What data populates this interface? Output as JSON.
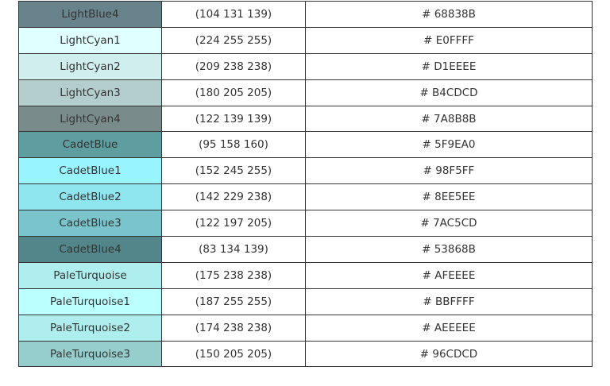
{
  "rows": [
    {
      "name": "LightBlue4",
      "rgb": "(104 131 139)",
      "hex": "# 68838B",
      "color": "#68838B"
    },
    {
      "name": "LightCyan1",
      "rgb": "(224 255 255)",
      "hex": "# E0FFFF",
      "color": "#E0FFFF"
    },
    {
      "name": "LightCyan2",
      "rgb": "(209 238 238)",
      "hex": "# D1EEEE",
      "color": "#D1EEEE"
    },
    {
      "name": "LightCyan3",
      "rgb": "(180 205 205)",
      "hex": "# B4CDCD",
      "color": "#B4CDCD"
    },
    {
      "name": "LightCyan4",
      "rgb": "(122 139 139)",
      "hex": "# 7A8B8B",
      "color": "#7A8B8B"
    },
    {
      "name": "CadetBlue",
      "rgb": "(95 158 160)",
      "hex": "# 5F9EA0",
      "color": "#5F9EA0"
    },
    {
      "name": "CadetBlue1",
      "rgb": "(152 245 255)",
      "hex": "# 98F5FF",
      "color": "#98F5FF"
    },
    {
      "name": "CadetBlue2",
      "rgb": "(142 229 238)",
      "hex": "# 8EE5EE",
      "color": "#8EE5EE"
    },
    {
      "name": "CadetBlue3",
      "rgb": "(122 197 205)",
      "hex": "# 7AC5CD",
      "color": "#7AC5CD"
    },
    {
      "name": "CadetBlue4",
      "rgb": "(83 134 139)",
      "hex": "# 53868B",
      "color": "#53868B"
    },
    {
      "name": "PaleTurquoise",
      "rgb": "(175 238 238)",
      "hex": "# AFEEEE",
      "color": "#AFEEEE"
    },
    {
      "name": "PaleTurquoise1",
      "rgb": "(187 255 255)",
      "hex": "# BBFFFF",
      "color": "#BBFFFF"
    },
    {
      "name": "PaleTurquoise2",
      "rgb": "(174 238 238)",
      "hex": "# AEEEEE",
      "color": "#AEEEEE"
    },
    {
      "name": "PaleTurquoise3",
      "rgb": "(150 205 205)",
      "hex": "# 96CDCD",
      "color": "#96CDCD"
    }
  ]
}
